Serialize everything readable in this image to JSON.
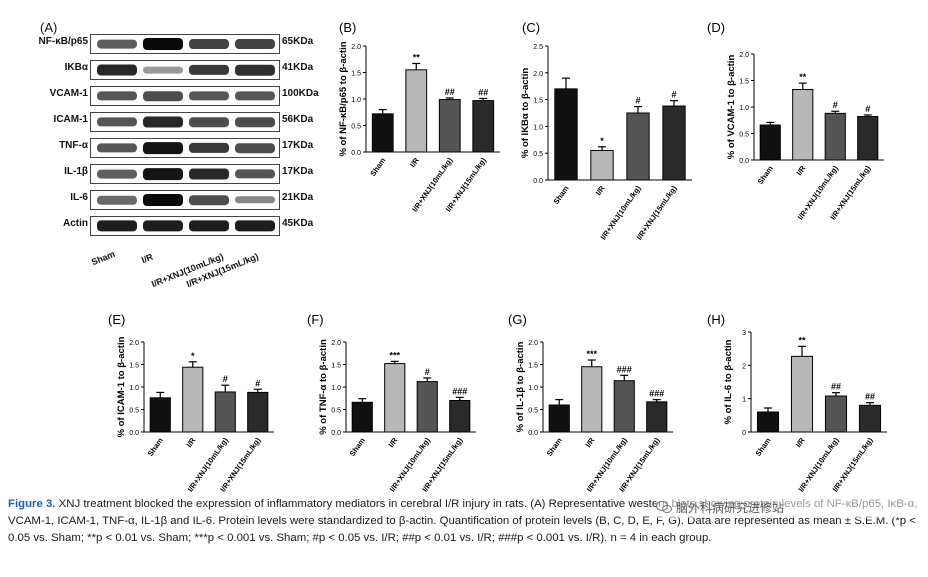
{
  "blot": {
    "panel_label": "(A)",
    "rows": [
      {
        "protein": "NF-κB/p65",
        "kda": "65KDa",
        "intensity": [
          0.55,
          1.0,
          0.7,
          0.7
        ]
      },
      {
        "protein": "IKBα",
        "kda": "41KDa",
        "intensity": [
          0.85,
          0.25,
          0.75,
          0.8
        ]
      },
      {
        "protein": "VCAM-1",
        "kda": "100KDa",
        "intensity": [
          0.6,
          0.65,
          0.6,
          0.6
        ]
      },
      {
        "protein": "ICAM-1",
        "kda": "56KDa",
        "intensity": [
          0.6,
          0.85,
          0.65,
          0.65
        ]
      },
      {
        "protein": "TNF-α",
        "kda": "17KDa",
        "intensity": [
          0.6,
          0.95,
          0.75,
          0.65
        ]
      },
      {
        "protein": "IL-1β",
        "kda": "17KDa",
        "intensity": [
          0.55,
          0.95,
          0.85,
          0.6
        ]
      },
      {
        "protein": "IL-6",
        "kda": "21KDa",
        "intensity": [
          0.5,
          1.0,
          0.65,
          0.35
        ]
      },
      {
        "protein": "Actin",
        "kda": "45KDa",
        "intensity": [
          0.9,
          0.9,
          0.9,
          0.9
        ]
      }
    ],
    "lanes": [
      "Sham",
      "I/R",
      "I/R+XNJ(10mL/kg)",
      "I/R+XNJ(15mL/kg)"
    ]
  },
  "chart_data": [
    {
      "type": "bar",
      "panel": "(B)",
      "ylabel": "% of NF-κB/p65 to β-actin",
      "ylim": [
        0,
        2.0
      ],
      "yticks": [
        "0.0",
        "0.5",
        "1.0",
        "1.5",
        "2.0"
      ],
      "categories": [
        "Sham",
        "I/R",
        "I/R+XNJ(10mL/kg)",
        "I/R+XNJ(15mL/kg)"
      ],
      "values": [
        0.72,
        1.55,
        0.99,
        0.97
      ],
      "errors": [
        0.08,
        0.12,
        0.03,
        0.04
      ],
      "annotations": [
        "",
        "**",
        "##",
        "##"
      ]
    },
    {
      "type": "bar",
      "panel": "(C)",
      "ylabel": "% of IKBα to β-actin",
      "ylim": [
        0,
        2.5
      ],
      "yticks": [
        "0.0",
        "0.5",
        "1.0",
        "1.5",
        "2.0",
        "2.5"
      ],
      "categories": [
        "Sham",
        "I/R",
        "I/R+XNJ(10mL/kg)",
        "I/R+XNJ(15mL/kg)"
      ],
      "values": [
        1.7,
        0.55,
        1.25,
        1.38
      ],
      "errors": [
        0.2,
        0.07,
        0.12,
        0.1
      ],
      "annotations": [
        "",
        "*",
        "#",
        "#"
      ]
    },
    {
      "type": "bar",
      "panel": "(D)",
      "ylabel": "% of VCAM-1 to β-actin",
      "ylim": [
        0,
        2.0
      ],
      "yticks": [
        "0.0",
        "0.5",
        "1.0",
        "1.5",
        "2.0"
      ],
      "categories": [
        "Sham",
        "I/R",
        "I/R+XNJ(10mL/kg)",
        "I/R+XNJ(15mL/kg)"
      ],
      "values": [
        0.66,
        1.33,
        0.88,
        0.82
      ],
      "errors": [
        0.05,
        0.12,
        0.04,
        0.03
      ],
      "annotations": [
        "",
        "**",
        "#",
        "#"
      ]
    },
    {
      "type": "bar",
      "panel": "(E)",
      "ylabel": "% of ICAM-1 to β-actin",
      "ylim": [
        0,
        2.0
      ],
      "yticks": [
        "0.0",
        "0.5",
        "1.0",
        "1.5",
        "2.0"
      ],
      "categories": [
        "Sham",
        "I/R",
        "I/R+XNJ(10mL/kg)",
        "I/R+XNJ(15mL/kg)"
      ],
      "values": [
        0.76,
        1.44,
        0.89,
        0.88
      ],
      "errors": [
        0.12,
        0.12,
        0.15,
        0.07
      ],
      "annotations": [
        "",
        "*",
        "#",
        "#"
      ]
    },
    {
      "type": "bar",
      "panel": "(F)",
      "ylabel": "% of TNF-α to β-actin",
      "ylim": [
        0,
        2.0
      ],
      "yticks": [
        "0.0",
        "0.5",
        "1.0",
        "1.5",
        "2.0"
      ],
      "categories": [
        "Sham",
        "I/R",
        "I/R+XNJ(10mL/kg)",
        "I/R+XNJ(15mL/kg)"
      ],
      "values": [
        0.66,
        1.52,
        1.12,
        0.7
      ],
      "errors": [
        0.08,
        0.05,
        0.08,
        0.07
      ],
      "annotations": [
        "",
        "***",
        "#",
        "###"
      ]
    },
    {
      "type": "bar",
      "panel": "(G)",
      "ylabel": "% of IL-1β to β-actin",
      "ylim": [
        0,
        2.0
      ],
      "yticks": [
        "0.0",
        "0.5",
        "1.0",
        "1.5",
        "2.0"
      ],
      "categories": [
        "Sham",
        "I/R",
        "I/R+XNJ(10mL/kg)",
        "I/R+XNJ(15mL/kg)"
      ],
      "values": [
        0.6,
        1.45,
        1.14,
        0.67
      ],
      "errors": [
        0.12,
        0.15,
        0.12,
        0.05
      ],
      "annotations": [
        "",
        "***",
        "###",
        "###"
      ]
    },
    {
      "type": "bar",
      "panel": "(H)",
      "ylabel": "% of IL-6 to β-actin",
      "ylim": [
        0,
        3
      ],
      "yticks": [
        "0",
        "1",
        "2",
        "3"
      ],
      "categories": [
        "Sham",
        "I/R",
        "I/R+XNJ(10mL/kg)",
        "I/R+XNJ(15mL/kg)"
      ],
      "values": [
        0.6,
        2.27,
        1.08,
        0.8
      ],
      "errors": [
        0.12,
        0.3,
        0.1,
        0.08
      ],
      "annotations": [
        "",
        "**",
        "##",
        "##"
      ]
    }
  ],
  "bar_colors": [
    "#111111",
    "#b8b8b8",
    "#555555",
    "#2a2a2a"
  ],
  "caption": {
    "figure_label": "Figure 3.",
    "text": "XNJ treatment blocked the expression of inflammatory mediators in cerebral I/R injury in rats. (A) Representative western blots showing protein levels of NF-κB/p65, IκB-α, VCAM-1, ICAM-1, TNF-α, IL-1β and IL-6. Protein levels were standardized to β-actin. Quantification of protein levels (B, C, D, E, F, G). Data are represented as mean ± S.E.M. (*p < 0.05 vs. Sham; **p < 0.01 vs. Sham; ***p < 0.001 vs. Sham; #p < 0.05 vs. I/R; ##p < 0.01 vs. I/R; ###p < 0.001 vs. I/R). n = 4 in each group."
  },
  "watermark": "脑外科病研究进修站"
}
